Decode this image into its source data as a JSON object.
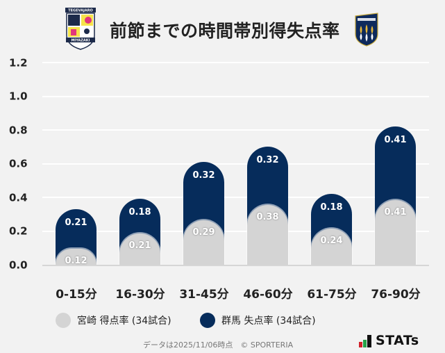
{
  "header": {
    "title": "前節までの時間帯別得失点率",
    "home_logo": "miyazaki-crest",
    "away_logo": "gunma-crest"
  },
  "colors": {
    "background": "#f2f2f2",
    "home": "#d4d4d4",
    "away": "#062c5b",
    "grid": "#ffffff",
    "baseline": "#d6d6d6"
  },
  "legend": {
    "home_label": "宮崎 得点率 (34試合)",
    "away_label": "群馬 失点率 (34試合)"
  },
  "footer": {
    "note": "データは2025/11/06時点　© SPORTERIA",
    "brand": "STATs"
  },
  "chart_data": {
    "type": "bar",
    "stacked": true,
    "title": "前節までの時間帯別得失点率",
    "xlabel": "",
    "ylabel": "",
    "ylim": [
      0,
      1.2
    ],
    "yticks": [
      "0.0",
      "0.2",
      "0.4",
      "0.6",
      "0.8",
      "1.0",
      "1.2"
    ],
    "grid": true,
    "legend_position": "bottom",
    "categories": [
      "0-15分",
      "16-30分",
      "31-45分",
      "46-60分",
      "61-75分",
      "76-90分"
    ],
    "series": [
      {
        "name": "宮崎 得点率 (34試合)",
        "color": "#d4d4d4",
        "values": [
          0.12,
          0.21,
          0.29,
          0.38,
          0.24,
          0.41
        ],
        "labels": [
          "0.12",
          "0.21",
          "0.29",
          "0.38",
          "0.24",
          "0.41"
        ]
      },
      {
        "name": "群馬 失点率 (34試合)",
        "color": "#062c5b",
        "values": [
          0.21,
          0.18,
          0.32,
          0.32,
          0.18,
          0.41
        ],
        "labels": [
          "0.21",
          "0.18",
          "0.32",
          "0.32",
          "0.18",
          "0.41"
        ]
      }
    ]
  }
}
